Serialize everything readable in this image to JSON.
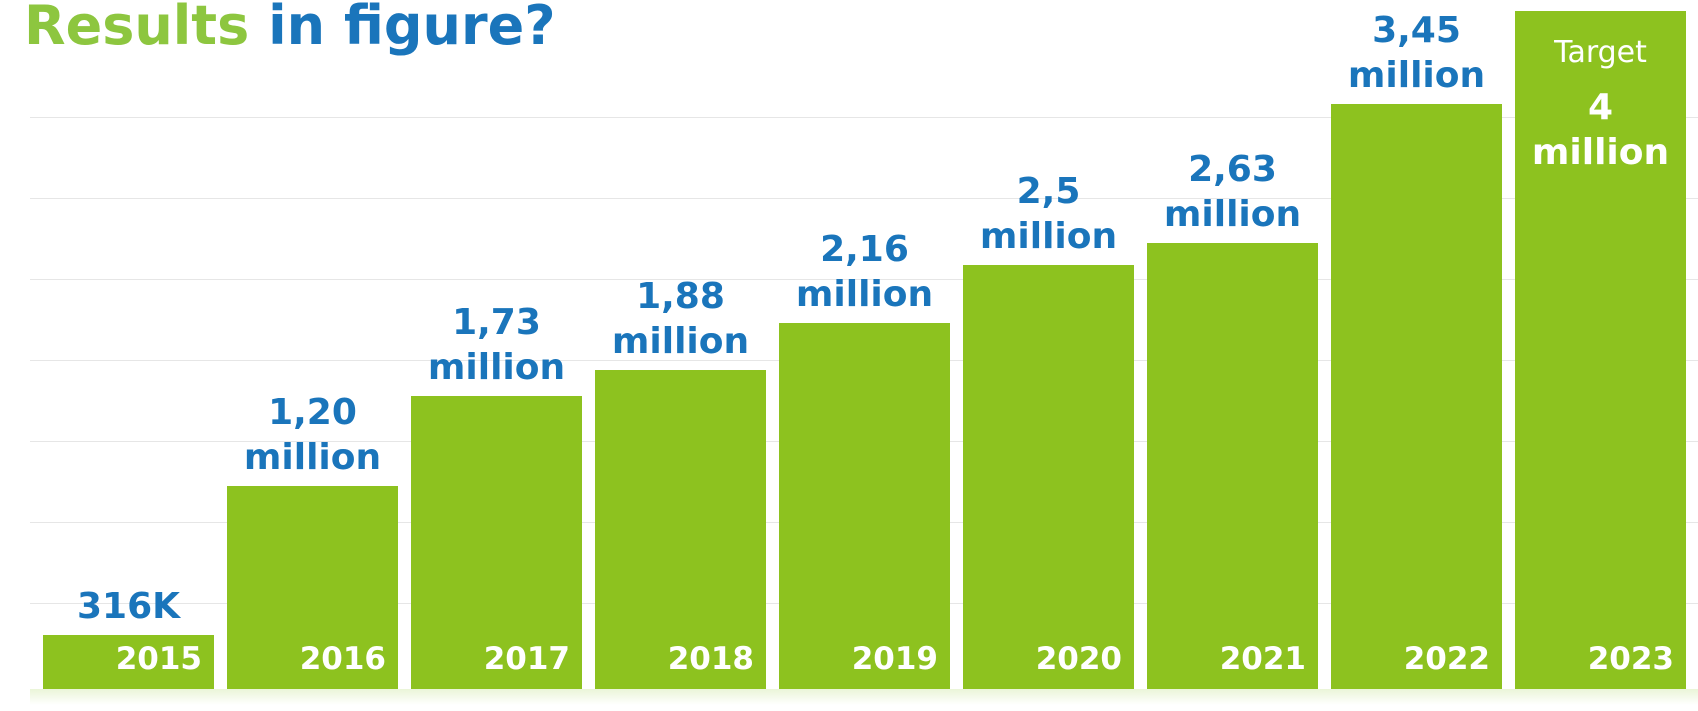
{
  "chart_data": {
    "type": "bar",
    "title": [
      "Results",
      "in figure?"
    ],
    "categories": [
      "2015",
      "2016",
      "2017",
      "2018",
      "2019",
      "2020",
      "2021",
      "2022",
      "2023"
    ],
    "values": [
      0.316,
      1.2,
      1.73,
      1.88,
      2.16,
      2.5,
      2.63,
      3.45,
      4
    ],
    "value_labels": [
      "316K",
      "1,20 million",
      "1,73 million",
      "1,88 million",
      "2,16 million",
      "2,5 million",
      "2,63 million",
      "3,45 million",
      "4 million"
    ],
    "annotation": "Target",
    "color": "#8dc21f",
    "ylim": [
      0,
      4
    ]
  }
}
